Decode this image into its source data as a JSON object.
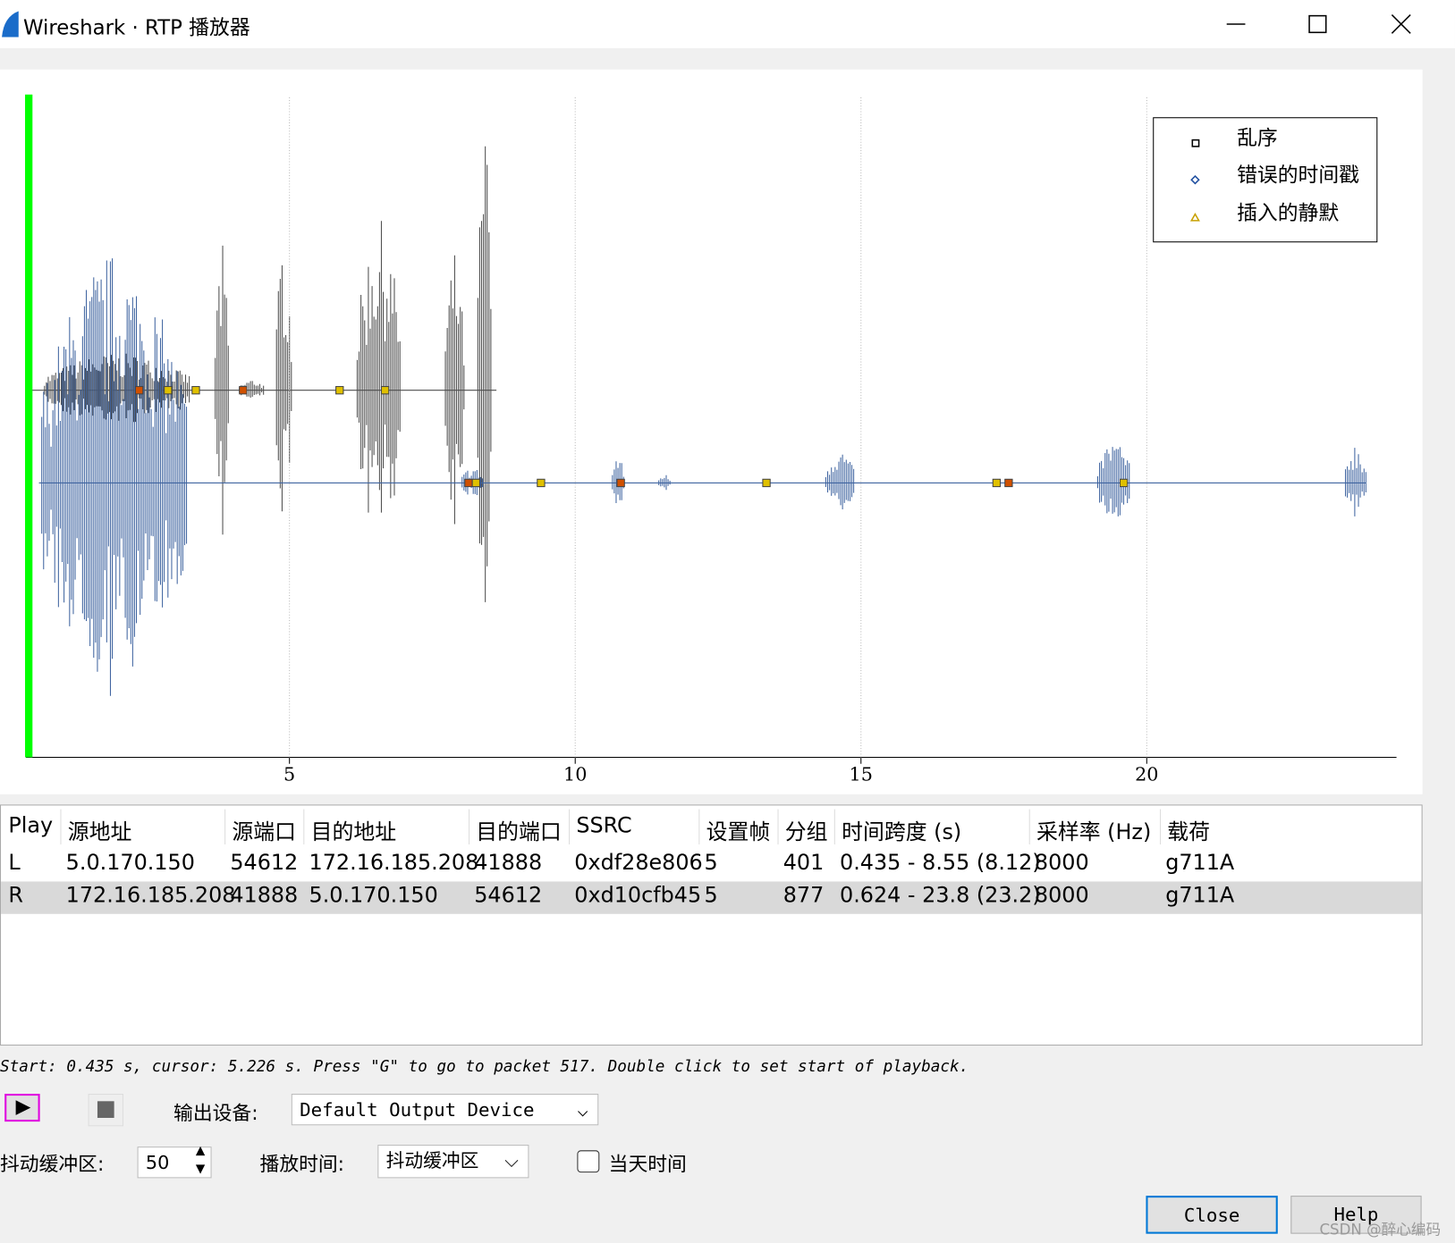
{
  "window": {
    "title": "Wireshark · RTP 播放器"
  },
  "chart_data": {
    "type": "waveform",
    "xlim": [
      0.39,
      24.37
    ],
    "xticks": [
      5,
      10,
      15,
      20
    ],
    "legend": [
      "乱序",
      "错误的时间戳",
      "插入的静默"
    ]
  },
  "table": {
    "columns": [
      "Play",
      "源地址",
      "源端口",
      "目的地址",
      "目的端口",
      "SSRC",
      "设置帧",
      "分组",
      "时间跨度 (s)",
      "采样率 (Hz)",
      "载荷"
    ],
    "rows": [
      [
        "L",
        "5.0.170.150",
        "54612",
        "172.16.185.208",
        "41888",
        "0xdf28e806",
        "5",
        "401",
        "0.435 - 8.55 (8.12)",
        "8000",
        "g711A"
      ],
      [
        "R",
        "172.16.185.208",
        "41888",
        "5.0.170.150",
        "54612",
        "0xd10cfb45",
        "5",
        "877",
        "0.624 - 23.8 (23.2)",
        "8000",
        "g711A"
      ]
    ]
  },
  "status": "Start: 0.435 s, cursor: 5.226 s. Press \"G\" to go to packet 517. Double click to set start of playback.",
  "controls": {
    "output_label": "输出设备:",
    "output_device": "Default Output Device",
    "jitter_label": "抖动缓冲区:",
    "jitter_value": "50",
    "time_label": "播放时间:",
    "time_mode": "抖动缓冲区",
    "today_label": "当天时间",
    "close": "Close",
    "help": "Help"
  },
  "watermark": "CSDN @醉心编码"
}
